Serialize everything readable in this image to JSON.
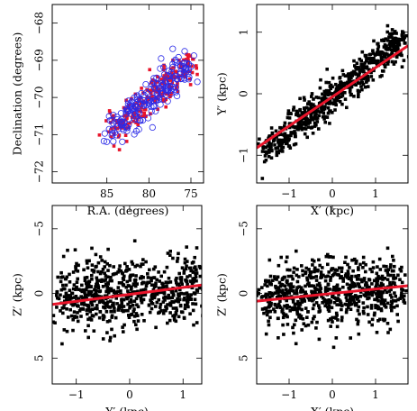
{
  "chart_data": [
    {
      "type": "scatter",
      "xlabel": "R.A. (degrees)",
      "ylabel": "Declination (degrees)",
      "xlim": [
        91.5,
        73.5
      ],
      "ylim": [
        -72.3,
        -67.5
      ],
      "x_reversed": true,
      "y_reversed": true,
      "xticks": [
        {
          "v": 85,
          "label": "85"
        },
        {
          "v": 80,
          "label": "80"
        },
        {
          "v": 75,
          "label": "75"
        }
      ],
      "yticks": [
        {
          "v": -68,
          "label": "−68"
        },
        {
          "v": -69,
          "label": "−69"
        },
        {
          "v": -70,
          "label": "−70"
        },
        {
          "v": -71,
          "label": "−71"
        },
        {
          "v": -72,
          "label": "−72"
        }
      ],
      "series": [
        {
          "marker": "filled-square",
          "color": "#e8142a",
          "trend": {
            "x0": 84.4,
            "y0": -70.9,
            "x1": 75.2,
            "y1": -69.1
          },
          "spread": 0.38,
          "n": 230
        },
        {
          "marker": "open-circle",
          "color": "#2a2ae8",
          "trend": {
            "x0": 84.4,
            "y0": -70.9,
            "x1": 75.2,
            "y1": -69.1
          },
          "spread": 0.38,
          "n": 200
        }
      ]
    },
    {
      "type": "scatter",
      "xlabel": "X′ (kpc)",
      "ylabel": "Y′ (kpc)",
      "xlim": [
        -1.75,
        1.75
      ],
      "ylim": [
        -1.45,
        1.45
      ],
      "xticks": [
        {
          "v": -1,
          "label": "−1"
        },
        {
          "v": 0,
          "label": "0"
        },
        {
          "v": 1,
          "label": "1"
        }
      ],
      "yticks": [
        {
          "v": 1,
          "label": "1"
        },
        {
          "v": 0,
          "label": "0"
        },
        {
          "v": -1,
          "label": "−1"
        }
      ],
      "series": [
        {
          "marker": "filled-square",
          "color": "#000000",
          "trend": {
            "x0": -1.55,
            "y0": -0.95,
            "x1": 1.6,
            "y1": 0.9
          },
          "spread": 0.22,
          "n": 700
        }
      ],
      "fit_line": {
        "x": [
          -1.75,
          1.75
        ],
        "y": [
          -0.88,
          0.78
        ],
        "color": "#e8142a"
      }
    },
    {
      "type": "scatter",
      "xlabel": "Y′ (kpc)",
      "ylabel": "Z′ (kpc)",
      "xlim": [
        -1.45,
        1.35
      ],
      "ylim": [
        7.0,
        -6.8
      ],
      "y_reversed": true,
      "xticks": [
        {
          "v": -1,
          "label": "−1"
        },
        {
          "v": 0,
          "label": "0"
        },
        {
          "v": 1,
          "label": "1"
        }
      ],
      "yticks": [
        {
          "v": -5,
          "label": "−5"
        },
        {
          "v": 0,
          "label": "0"
        },
        {
          "v": 5,
          "label": "5"
        }
      ],
      "series": [
        {
          "marker": "filled-square",
          "color": "#000000",
          "trend": {
            "x0": -1.3,
            "y0": 0.2,
            "x1": 1.3,
            "y1": -0.3
          },
          "spread": 2.4,
          "n": 700
        }
      ],
      "fit_line": {
        "x": [
          -1.45,
          1.35
        ],
        "y": [
          0.85,
          -0.65
        ],
        "color": "#e8142a"
      }
    },
    {
      "type": "scatter",
      "xlabel": "X′ (kpc)",
      "ylabel": "Z′ (kpc)",
      "xlim": [
        -1.75,
        1.75
      ],
      "ylim": [
        7.0,
        -6.8
      ],
      "y_reversed": true,
      "xticks": [
        {
          "v": -1,
          "label": "−1"
        },
        {
          "v": 0,
          "label": "0"
        },
        {
          "v": 1,
          "label": "1"
        }
      ],
      "yticks": [
        {
          "v": -5,
          "label": "−5"
        },
        {
          "v": 0,
          "label": "0"
        },
        {
          "v": 5,
          "label": "5"
        }
      ],
      "series": [
        {
          "marker": "filled-square",
          "color": "#000000",
          "trend": {
            "x0": -1.6,
            "y0": 0.3,
            "x1": 1.6,
            "y1": -0.3
          },
          "spread": 2.3,
          "n": 700
        }
      ],
      "fit_line": {
        "x": [
          -1.75,
          1.75
        ],
        "y": [
          0.6,
          -0.6
        ],
        "color": "#e8142a"
      }
    }
  ]
}
